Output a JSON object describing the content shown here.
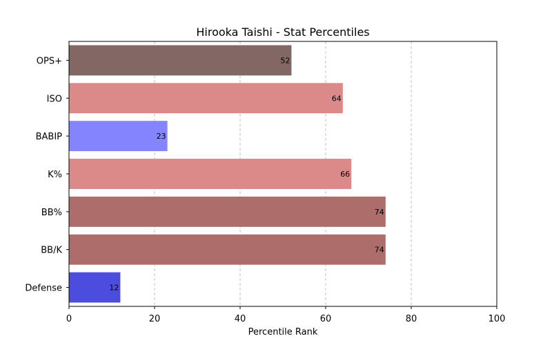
{
  "chart_data": {
    "type": "bar",
    "orientation": "horizontal",
    "title": "Hirooka Taishi - Stat Percentiles",
    "xlabel": "Percentile Rank",
    "ylabel": "",
    "xlim": [
      0,
      100
    ],
    "xticks": [
      "0",
      "20",
      "40",
      "60",
      "80",
      "100"
    ],
    "grid": "vertical-dashed",
    "categories": [
      "OPS+",
      "ISO",
      "BABIP",
      "K%",
      "BB%",
      "BB/K",
      "Defense"
    ],
    "values": [
      52,
      64,
      23,
      66,
      74,
      74,
      12
    ],
    "colors": [
      "#826765",
      "#dc8a89",
      "#8484ff",
      "#dc8a89",
      "#ad6d6b",
      "#ad6d6b",
      "#4c4cde"
    ]
  }
}
